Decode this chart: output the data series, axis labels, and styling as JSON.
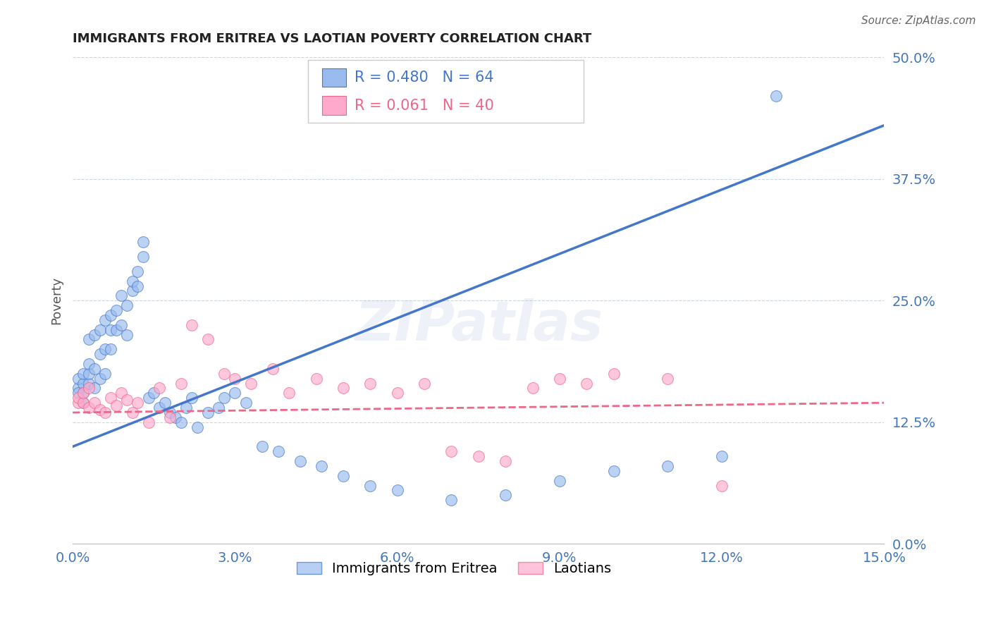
{
  "title": "IMMIGRANTS FROM ERITREA VS LAOTIAN POVERTY CORRELATION CHART",
  "source": "Source: ZipAtlas.com",
  "ylabel": "Poverty",
  "legend_label1": "Immigrants from Eritrea",
  "legend_label2": "Laotians",
  "R1": 0.48,
  "N1": 64,
  "R2": 0.061,
  "N2": 40,
  "xmin": 0.0,
  "xmax": 0.15,
  "ymin": 0.0,
  "ymax": 0.5,
  "yticks": [
    0.0,
    0.125,
    0.25,
    0.375,
    0.5
  ],
  "xticks": [
    0.0,
    0.03,
    0.06,
    0.09,
    0.12,
    0.15
  ],
  "color_blue": "#99BBEE",
  "color_pink": "#FFAACC",
  "color_blue_line": "#4477CC",
  "color_pink_line": "#EE6688",
  "color_axis_labels": "#4477BB",
  "blue_scatter_x": [
    0.001,
    0.001,
    0.001,
    0.002,
    0.002,
    0.002,
    0.002,
    0.003,
    0.003,
    0.003,
    0.003,
    0.004,
    0.004,
    0.004,
    0.005,
    0.005,
    0.005,
    0.006,
    0.006,
    0.006,
    0.007,
    0.007,
    0.007,
    0.008,
    0.008,
    0.009,
    0.009,
    0.01,
    0.01,
    0.011,
    0.011,
    0.012,
    0.012,
    0.013,
    0.013,
    0.014,
    0.015,
    0.016,
    0.017,
    0.018,
    0.019,
    0.02,
    0.021,
    0.022,
    0.023,
    0.025,
    0.027,
    0.028,
    0.03,
    0.032,
    0.035,
    0.038,
    0.042,
    0.046,
    0.05,
    0.055,
    0.06,
    0.07,
    0.08,
    0.09,
    0.1,
    0.11,
    0.12,
    0.13
  ],
  "blue_scatter_y": [
    0.16,
    0.17,
    0.155,
    0.165,
    0.155,
    0.175,
    0.145,
    0.165,
    0.175,
    0.185,
    0.21,
    0.16,
    0.18,
    0.215,
    0.17,
    0.195,
    0.22,
    0.175,
    0.2,
    0.23,
    0.22,
    0.2,
    0.235,
    0.22,
    0.24,
    0.225,
    0.255,
    0.215,
    0.245,
    0.26,
    0.27,
    0.265,
    0.28,
    0.295,
    0.31,
    0.15,
    0.155,
    0.14,
    0.145,
    0.135,
    0.13,
    0.125,
    0.14,
    0.15,
    0.12,
    0.135,
    0.14,
    0.15,
    0.155,
    0.145,
    0.1,
    0.095,
    0.085,
    0.08,
    0.07,
    0.06,
    0.055,
    0.045,
    0.05,
    0.065,
    0.075,
    0.08,
    0.09,
    0.46
  ],
  "pink_scatter_x": [
    0.001,
    0.001,
    0.002,
    0.002,
    0.003,
    0.003,
    0.004,
    0.005,
    0.006,
    0.007,
    0.008,
    0.009,
    0.01,
    0.011,
    0.012,
    0.014,
    0.016,
    0.018,
    0.02,
    0.022,
    0.025,
    0.028,
    0.03,
    0.033,
    0.037,
    0.04,
    0.045,
    0.05,
    0.055,
    0.06,
    0.065,
    0.07,
    0.075,
    0.08,
    0.085,
    0.09,
    0.095,
    0.1,
    0.11,
    0.12
  ],
  "pink_scatter_y": [
    0.145,
    0.15,
    0.145,
    0.155,
    0.14,
    0.16,
    0.145,
    0.138,
    0.135,
    0.15,
    0.142,
    0.155,
    0.148,
    0.135,
    0.145,
    0.125,
    0.16,
    0.13,
    0.165,
    0.225,
    0.21,
    0.175,
    0.17,
    0.165,
    0.18,
    0.155,
    0.17,
    0.16,
    0.165,
    0.155,
    0.165,
    0.095,
    0.09,
    0.085,
    0.16,
    0.17,
    0.165,
    0.175,
    0.17,
    0.06
  ],
  "blue_trend_x": [
    0.0,
    0.15
  ],
  "blue_trend_y": [
    0.1,
    0.43
  ],
  "pink_trend_x": [
    0.0,
    0.15
  ],
  "pink_trend_y": [
    0.135,
    0.145
  ]
}
